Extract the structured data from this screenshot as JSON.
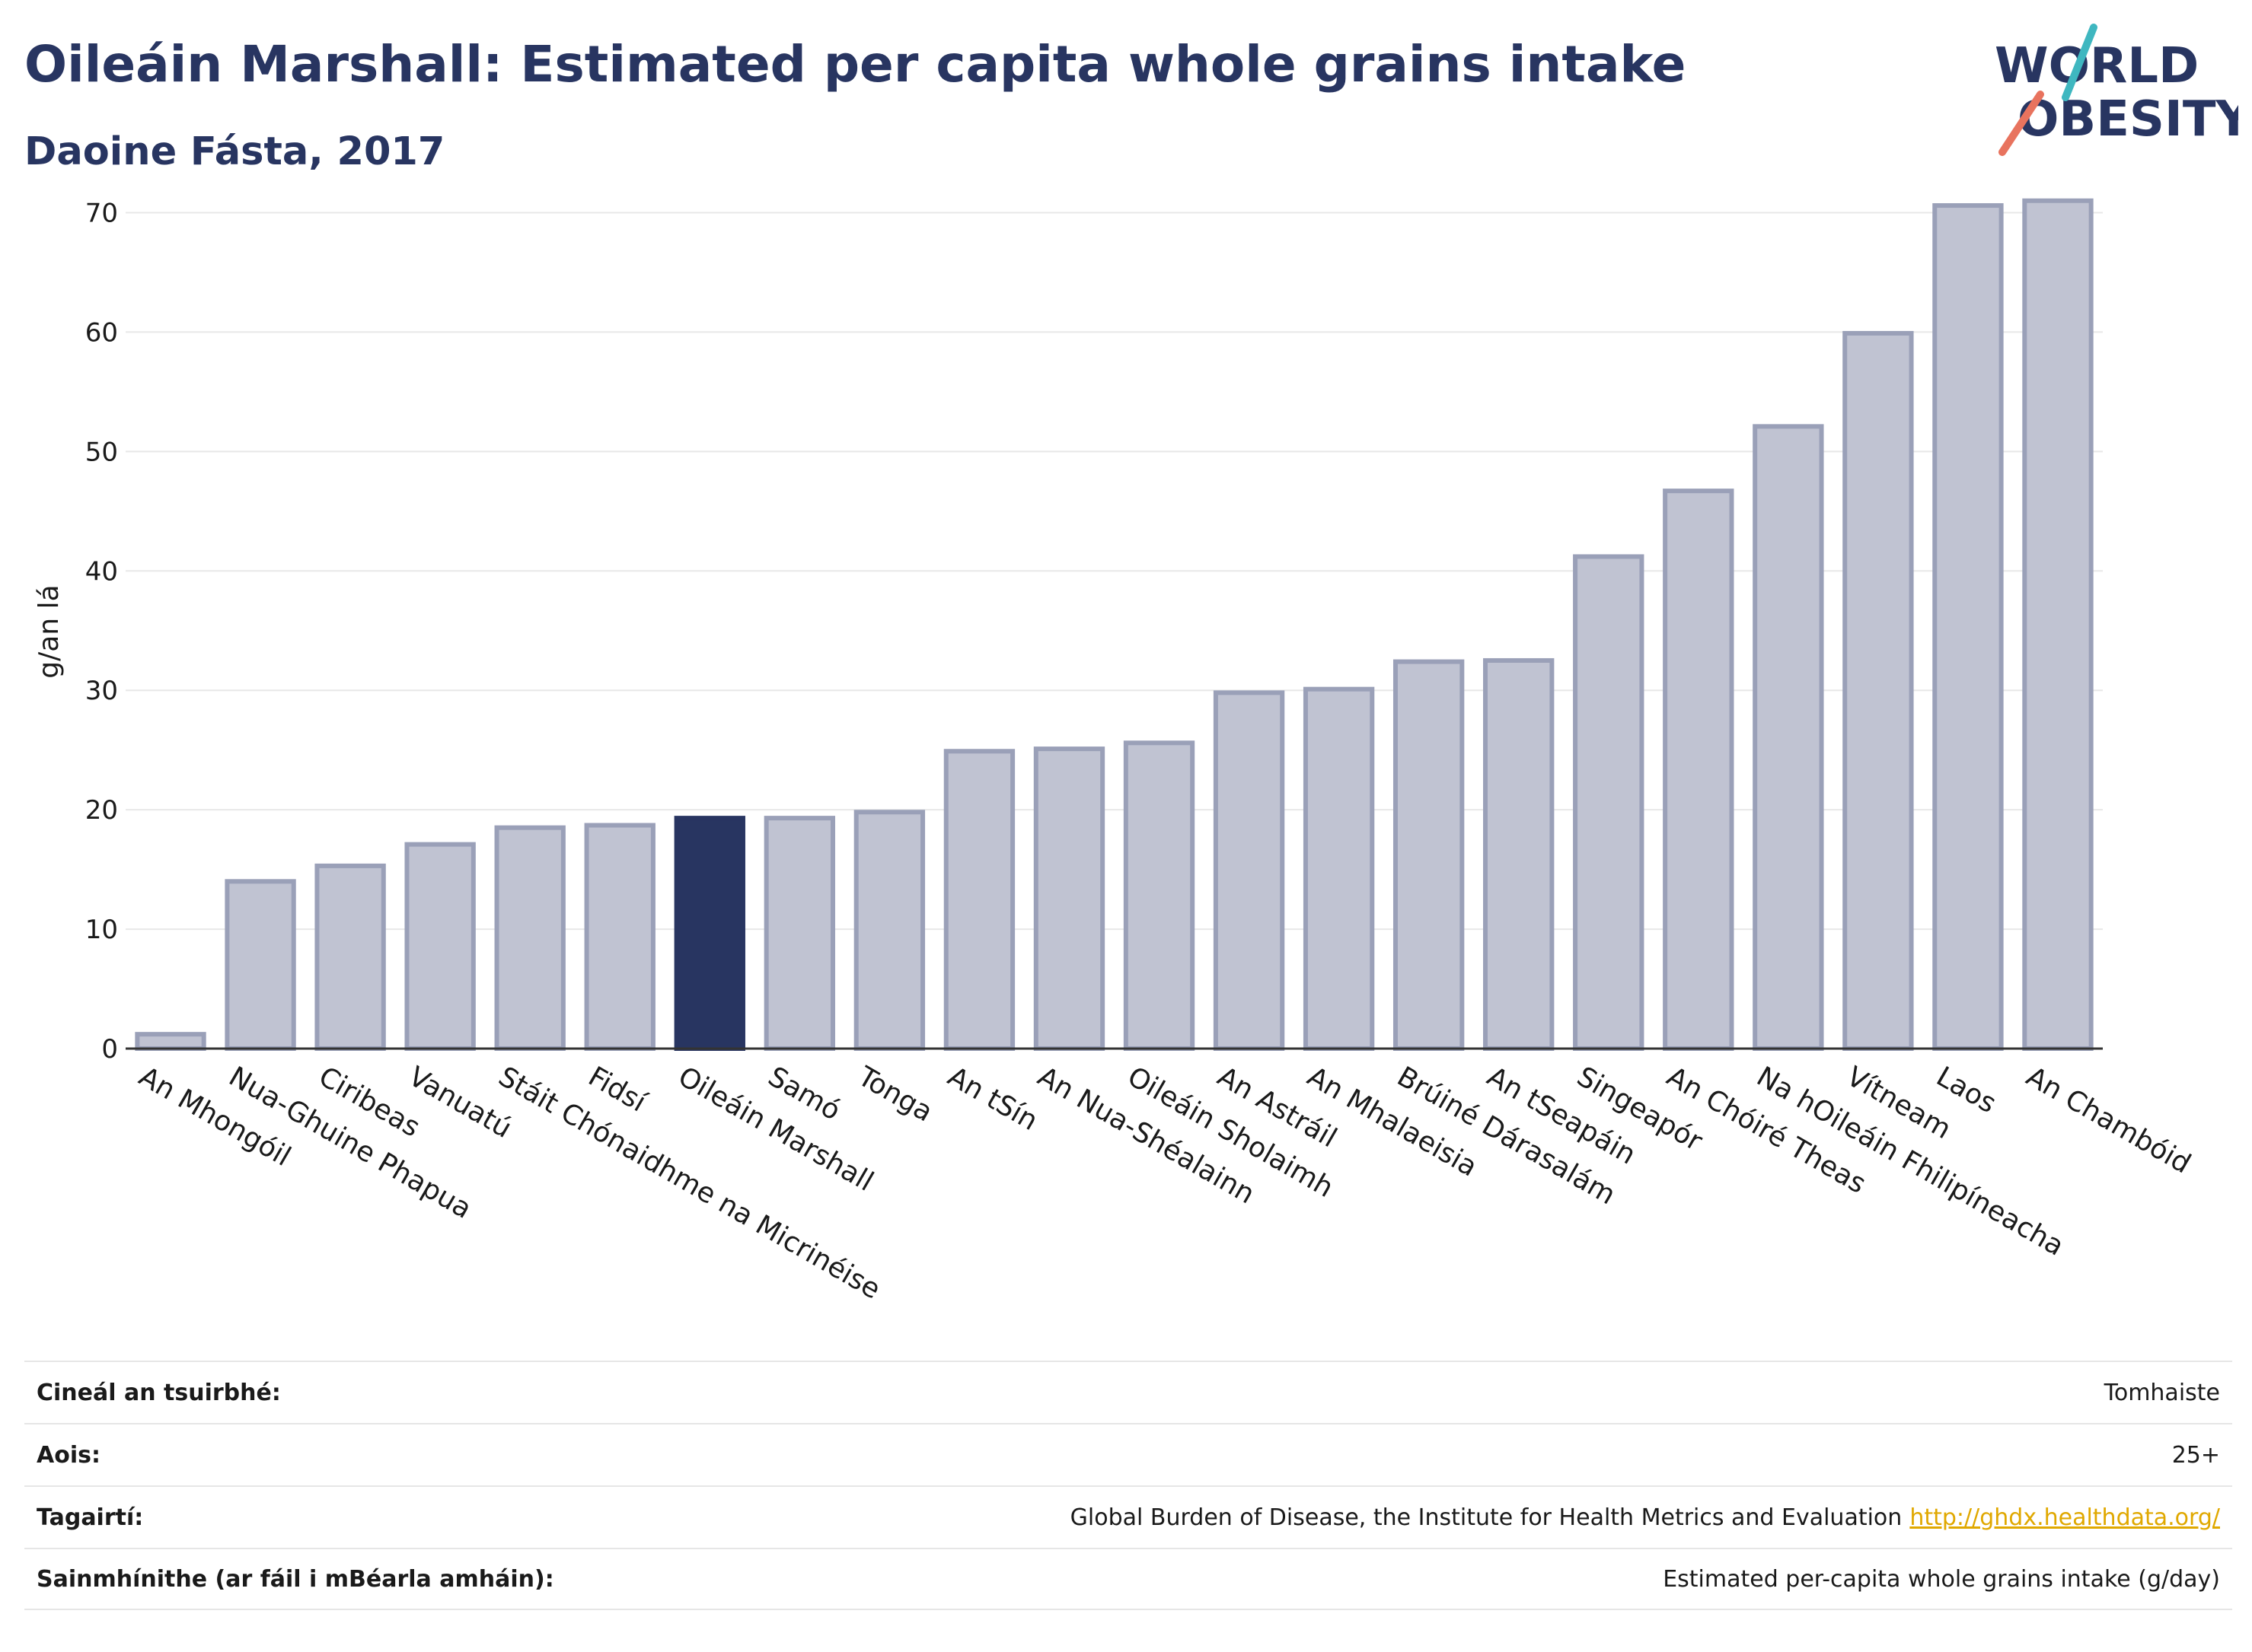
{
  "header": {
    "title": "Oileáin Marshall: Estimated per capita whole grains intake",
    "subtitle": "Daoine Fásta, 2017"
  },
  "logo": {
    "line1": "WORLD",
    "line2": "OBESITY"
  },
  "colors": {
    "highlight": "#283561",
    "bar_fill": "#c0c3d2",
    "bar_stroke": "#9aa0b8",
    "accent_teal": "#3fb7c0",
    "accent_red": "#e8735e"
  },
  "chart_data": {
    "type": "bar",
    "ylabel": "g/an lá",
    "ylim": [
      0,
      75
    ],
    "yticks": [
      "0",
      "10",
      "20",
      "30",
      "40",
      "50",
      "60",
      "70"
    ],
    "highlight": "Oileáin Marshall",
    "grid": true,
    "categories": [
      "An Mhongóil",
      "Nua-Ghuine Phapua",
      "Ciribeas",
      "Vanuatú",
      "Stáit Chónaidhme na Micrinéise",
      "Fidsí",
      "Oileáin Marshall",
      "Samó",
      "Tonga",
      "An tSín",
      "An Nua-Shéalainn",
      "Oileáin Sholaimh",
      "An Astráil",
      "An Mhalaeisia",
      "Brúiné Dárasalám",
      "An tSeapáin",
      "Singeapór",
      "An Chóiré Theas",
      "Na hOileáin Fhilipíneacha",
      "Vítneam",
      "Laos",
      "An Chambóid"
    ],
    "values": [
      1.2,
      14.0,
      15.3,
      17.1,
      18.5,
      18.7,
      19.3,
      19.3,
      19.8,
      24.9,
      25.1,
      25.6,
      29.8,
      30.1,
      32.4,
      32.5,
      41.2,
      46.7,
      52.1,
      59.9,
      70.6,
      71.0
    ]
  },
  "meta": {
    "rows": [
      {
        "label": "Cineál an tsuirbhé:",
        "value": "Tomhaiste"
      },
      {
        "label": "Aois:",
        "value": "25+"
      },
      {
        "label": "Tagairtí:",
        "value": "Global Burden of Disease, the Institute for Health Metrics and Evaluation",
        "link": "http://ghdx.healthdata.org/"
      },
      {
        "label": "Sainmhínithe (ar fáil i mBéarla amháin):",
        "value": "Estimated per-capita whole grains intake (g/day)"
      }
    ]
  }
}
